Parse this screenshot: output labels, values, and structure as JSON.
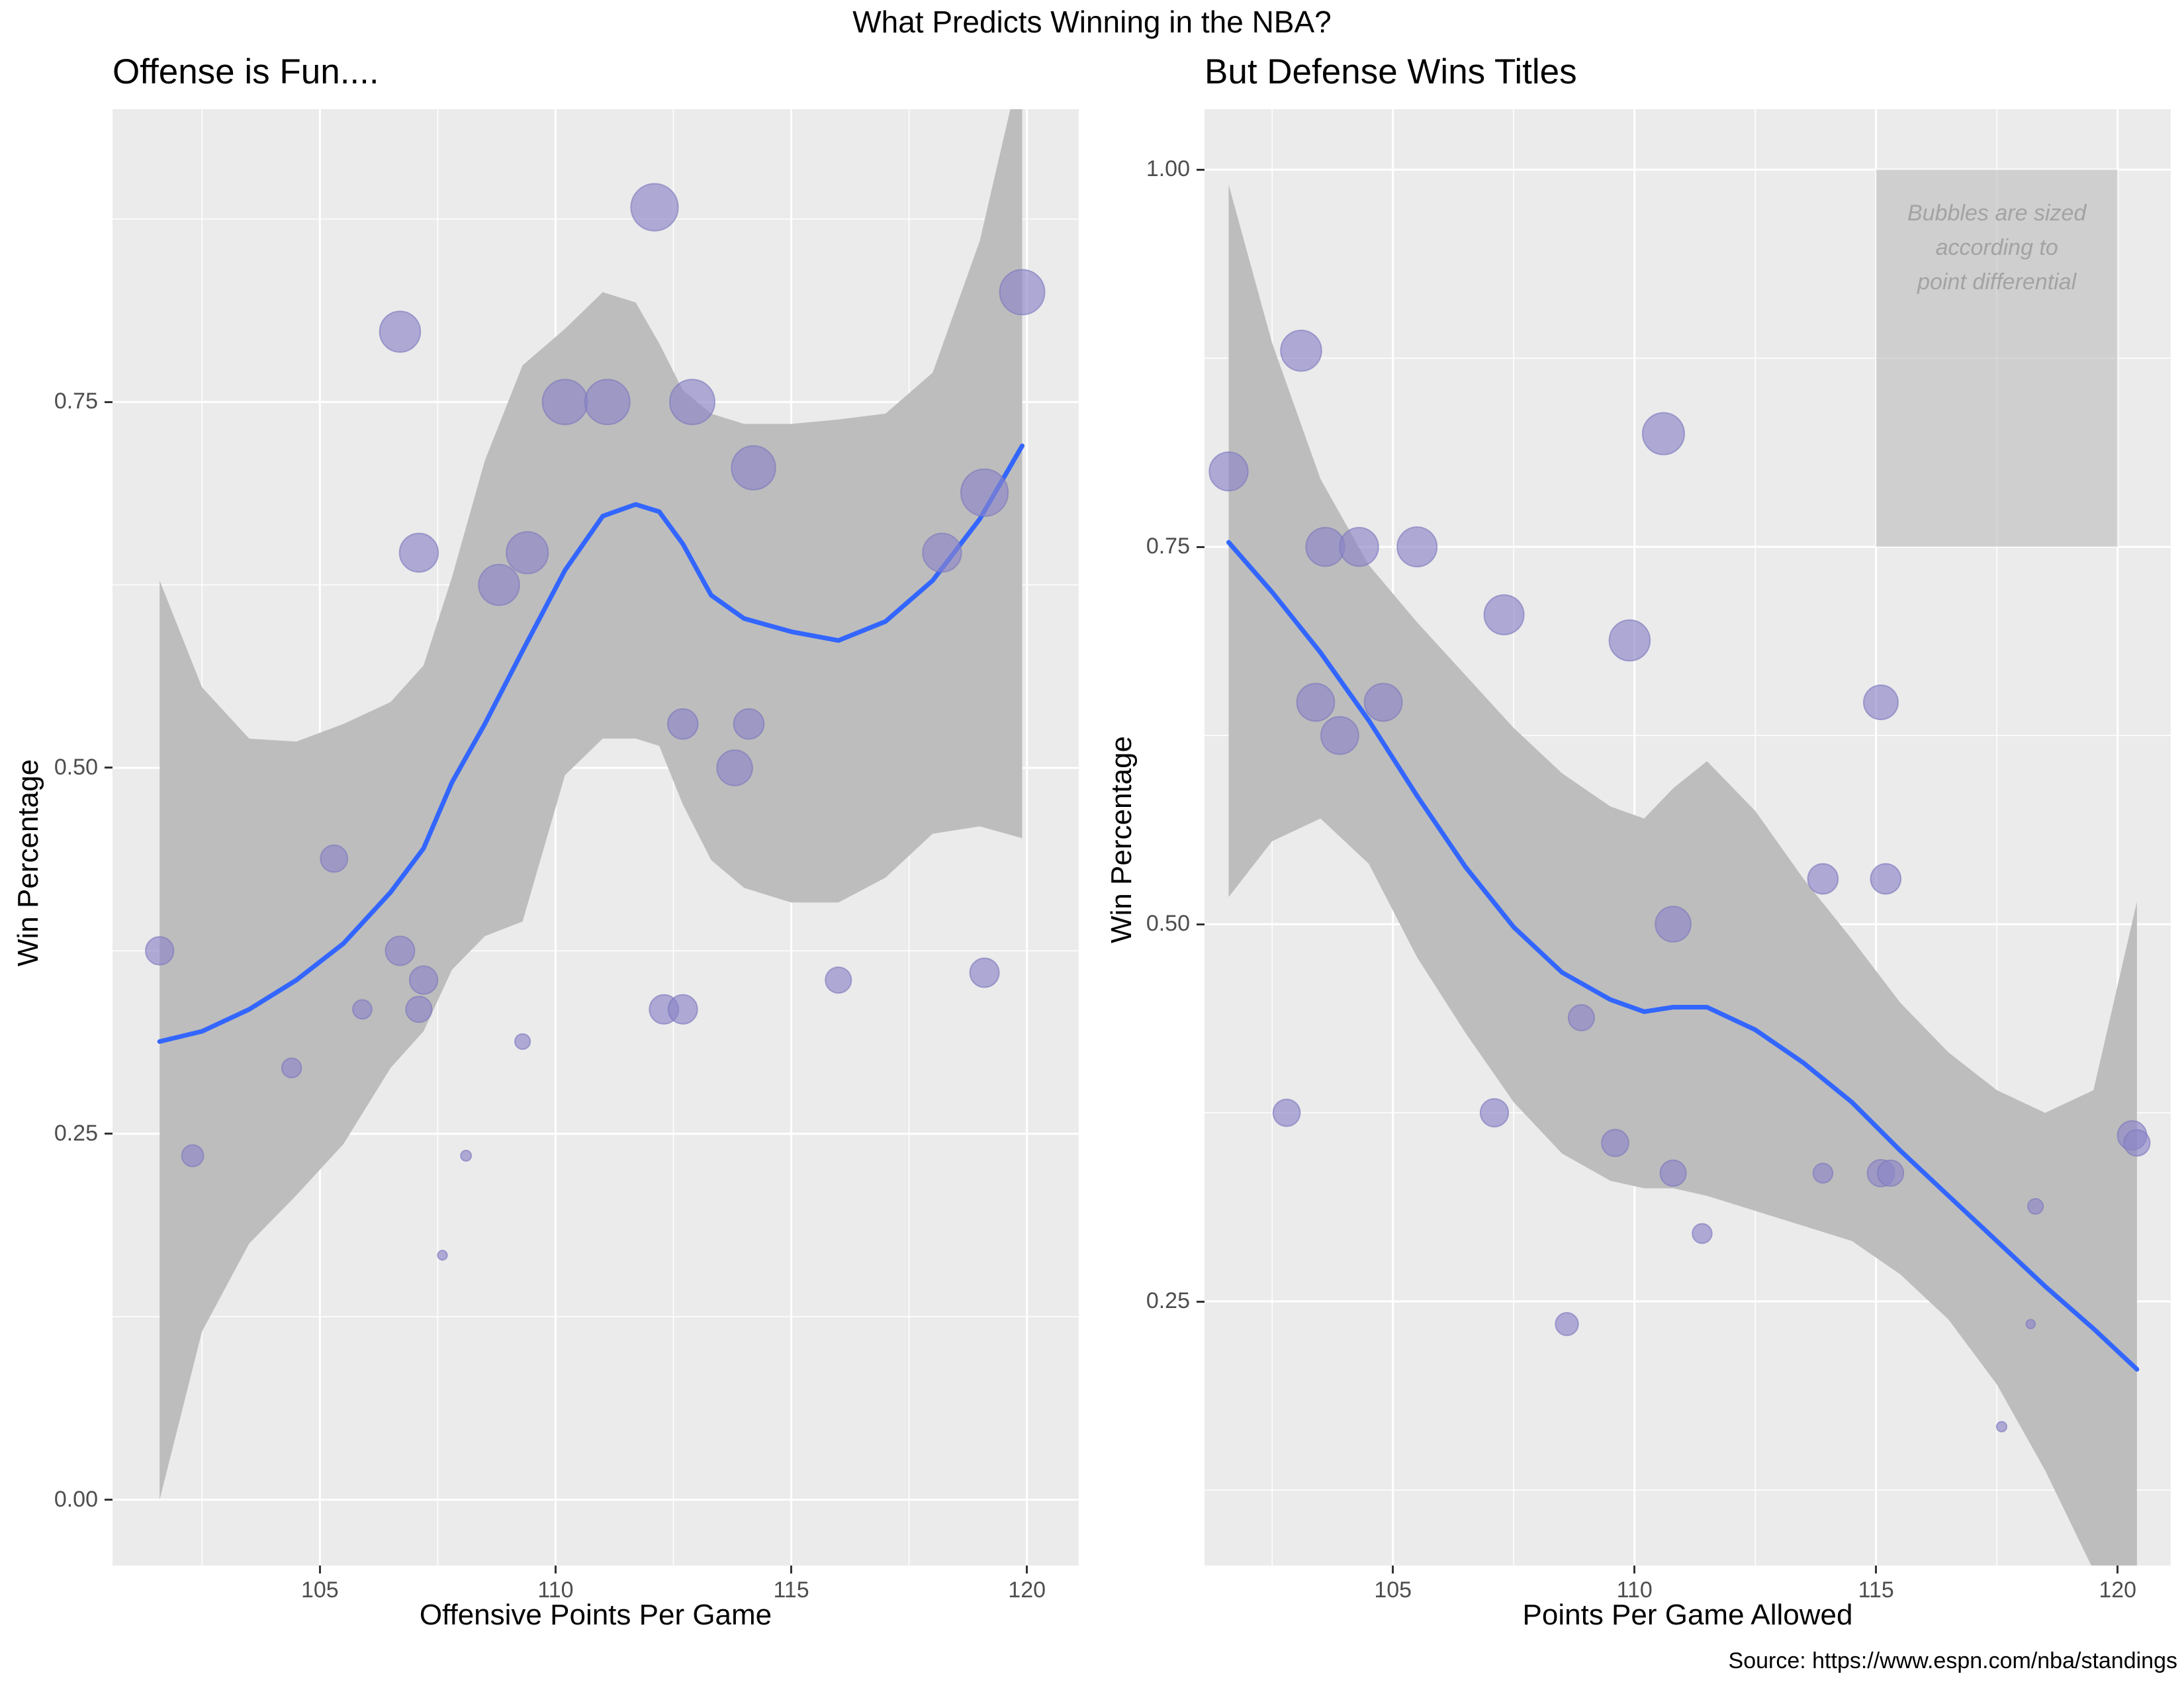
{
  "title": "What Predicts Winning in the NBA?",
  "source": "Source: https://www.espn.com/nba/standings",
  "colors": {
    "panel_bg": "#ebebeb",
    "grid": "#ffffff",
    "ribbon": "#bdbdbd",
    "smooth": "#3366ff",
    "bubble": "#8c86c8"
  },
  "chart_data": [
    {
      "type": "scatter",
      "title": "Offense is Fun....",
      "xlabel": "Offensive Points Per Game",
      "ylabel": "Win Percentage",
      "xlim": [
        100.6,
        121.1
      ],
      "ylim": [
        -0.045,
        0.95
      ],
      "xticks": [
        105,
        110,
        115,
        120
      ],
      "xtick_labels": [
        "105",
        "110",
        "115",
        "120"
      ],
      "yticks": [
        0.0,
        0.25,
        0.5,
        0.75
      ],
      "ytick_labels": [
        "0.00",
        "0.25",
        "0.50",
        "0.75"
      ],
      "points": [
        {
          "x": 101.6,
          "y": 0.375,
          "size": 0.38
        },
        {
          "x": 102.3,
          "y": 0.235,
          "size": 0.26
        },
        {
          "x": 104.4,
          "y": 0.295,
          "size": 0.22
        },
        {
          "x": 105.3,
          "y": 0.438,
          "size": 0.36
        },
        {
          "x": 105.9,
          "y": 0.335,
          "size": 0.21
        },
        {
          "x": 106.7,
          "y": 0.798,
          "size": 0.62
        },
        {
          "x": 106.7,
          "y": 0.375,
          "size": 0.4
        },
        {
          "x": 107.1,
          "y": 0.647,
          "size": 0.58
        },
        {
          "x": 107.1,
          "y": 0.335,
          "size": 0.34
        },
        {
          "x": 107.2,
          "y": 0.355,
          "size": 0.38
        },
        {
          "x": 107.6,
          "y": 0.167,
          "size": 0.03
        },
        {
          "x": 108.1,
          "y": 0.235,
          "size": 0.05
        },
        {
          "x": 108.8,
          "y": 0.625,
          "size": 0.62
        },
        {
          "x": 109.3,
          "y": 0.313,
          "size": 0.14
        },
        {
          "x": 109.4,
          "y": 0.647,
          "size": 0.64
        },
        {
          "x": 110.2,
          "y": 0.75,
          "size": 0.7
        },
        {
          "x": 111.1,
          "y": 0.75,
          "size": 0.7
        },
        {
          "x": 112.1,
          "y": 0.883,
          "size": 0.74
        },
        {
          "x": 112.3,
          "y": 0.335,
          "size": 0.4
        },
        {
          "x": 112.7,
          "y": 0.53,
          "size": 0.42
        },
        {
          "x": 112.7,
          "y": 0.335,
          "size": 0.4
        },
        {
          "x": 112.9,
          "y": 0.75,
          "size": 0.7
        },
        {
          "x": 113.8,
          "y": 0.5,
          "size": 0.52
        },
        {
          "x": 114.1,
          "y": 0.53,
          "size": 0.42
        },
        {
          "x": 114.2,
          "y": 0.705,
          "size": 0.68
        },
        {
          "x": 116.0,
          "y": 0.355,
          "size": 0.34
        },
        {
          "x": 118.2,
          "y": 0.647,
          "size": 0.58
        },
        {
          "x": 119.1,
          "y": 0.688,
          "size": 0.74
        },
        {
          "x": 119.1,
          "y": 0.36,
          "size": 0.4
        },
        {
          "x": 119.9,
          "y": 0.825,
          "size": 0.7
        }
      ],
      "smooth": {
        "x": [
          101.6,
          102.5,
          103.5,
          104.5,
          105.5,
          106.5,
          107.2,
          107.8,
          108.5,
          109.3,
          110.2,
          111.0,
          111.7,
          112.2,
          112.7,
          113.3,
          114.0,
          115.0,
          116.0,
          117.0,
          118.0,
          119.0,
          119.9
        ],
        "y": [
          0.313,
          0.32,
          0.335,
          0.355,
          0.38,
          0.415,
          0.445,
          0.49,
          0.53,
          0.58,
          0.635,
          0.672,
          0.68,
          0.675,
          0.653,
          0.618,
          0.602,
          0.593,
          0.587,
          0.6,
          0.628,
          0.67,
          0.72
        ],
        "lower": [
          0.0,
          0.115,
          0.175,
          0.208,
          0.243,
          0.295,
          0.32,
          0.362,
          0.385,
          0.395,
          0.495,
          0.52,
          0.52,
          0.515,
          0.475,
          0.437,
          0.418,
          0.408,
          0.408,
          0.425,
          0.455,
          0.46,
          0.452
        ],
        "upper": [
          0.628,
          0.555,
          0.52,
          0.518,
          0.53,
          0.545,
          0.57,
          0.63,
          0.71,
          0.775,
          0.8,
          0.825,
          0.818,
          0.79,
          0.758,
          0.742,
          0.735,
          0.735,
          0.738,
          0.742,
          0.77,
          0.86,
          0.985
        ]
      }
    },
    {
      "type": "scatter",
      "title": "But Defense Wins Titles",
      "xlabel": "Points Per Game Allowed",
      "ylabel": "Win Percentage",
      "xlim": [
        101.1,
        121.1
      ],
      "ylim": [
        0.075,
        1.04
      ],
      "xticks": [
        105,
        110,
        115,
        120
      ],
      "xtick_labels": [
        "105",
        "110",
        "115",
        "120"
      ],
      "yticks": [
        0.25,
        0.5,
        0.75,
        1.0
      ],
      "ytick_labels": [
        "0.25",
        "0.50",
        "0.75",
        "1.00"
      ],
      "annotation": "Bubbles are sized according to point differential",
      "annotation_lines": [
        "Bubbles are sized",
        "according to",
        "point differential"
      ],
      "annotation_rect": {
        "x0": 115.0,
        "x1": 120.0,
        "y0": 0.75,
        "y1": 1.0
      },
      "points": [
        {
          "x": 101.6,
          "y": 0.8,
          "size": 0.58
        },
        {
          "x": 102.8,
          "y": 0.375,
          "size": 0.36
        },
        {
          "x": 103.1,
          "y": 0.88,
          "size": 0.62
        },
        {
          "x": 103.4,
          "y": 0.647,
          "size": 0.56
        },
        {
          "x": 103.6,
          "y": 0.75,
          "size": 0.58
        },
        {
          "x": 103.9,
          "y": 0.625,
          "size": 0.56
        },
        {
          "x": 104.3,
          "y": 0.75,
          "size": 0.58
        },
        {
          "x": 104.8,
          "y": 0.647,
          "size": 0.56
        },
        {
          "x": 105.5,
          "y": 0.75,
          "size": 0.6
        },
        {
          "x": 107.1,
          "y": 0.375,
          "size": 0.38
        },
        {
          "x": 107.3,
          "y": 0.705,
          "size": 0.6
        },
        {
          "x": 108.6,
          "y": 0.235,
          "size": 0.28
        },
        {
          "x": 108.9,
          "y": 0.438,
          "size": 0.34
        },
        {
          "x": 109.6,
          "y": 0.355,
          "size": 0.36
        },
        {
          "x": 109.9,
          "y": 0.688,
          "size": 0.62
        },
        {
          "x": 110.6,
          "y": 0.825,
          "size": 0.64
        },
        {
          "x": 110.8,
          "y": 0.5,
          "size": 0.52
        },
        {
          "x": 110.8,
          "y": 0.335,
          "size": 0.34
        },
        {
          "x": 111.4,
          "y": 0.295,
          "size": 0.22
        },
        {
          "x": 113.9,
          "y": 0.53,
          "size": 0.42
        },
        {
          "x": 113.9,
          "y": 0.335,
          "size": 0.22
        },
        {
          "x": 115.1,
          "y": 0.647,
          "size": 0.5
        },
        {
          "x": 115.1,
          "y": 0.335,
          "size": 0.36
        },
        {
          "x": 115.2,
          "y": 0.53,
          "size": 0.42
        },
        {
          "x": 115.3,
          "y": 0.335,
          "size": 0.34
        },
        {
          "x": 117.6,
          "y": 0.167,
          "size": 0.04
        },
        {
          "x": 118.2,
          "y": 0.235,
          "size": 0.02
        },
        {
          "x": 118.3,
          "y": 0.313,
          "size": 0.14
        },
        {
          "x": 120.3,
          "y": 0.36,
          "size": 0.4
        },
        {
          "x": 120.4,
          "y": 0.355,
          "size": 0.34
        }
      ],
      "smooth": {
        "x": [
          101.6,
          102.5,
          103.5,
          104.5,
          105.5,
          106.5,
          107.5,
          108.5,
          109.5,
          110.2,
          110.8,
          111.5,
          112.5,
          113.5,
          114.5,
          115.5,
          116.5,
          117.5,
          118.5,
          119.5,
          120.4
        ],
        "y": [
          0.753,
          0.72,
          0.68,
          0.635,
          0.585,
          0.538,
          0.498,
          0.468,
          0.45,
          0.442,
          0.445,
          0.445,
          0.43,
          0.408,
          0.382,
          0.35,
          0.32,
          0.29,
          0.26,
          0.232,
          0.205
        ],
        "lower": [
          0.518,
          0.555,
          0.57,
          0.54,
          0.478,
          0.428,
          0.382,
          0.348,
          0.33,
          0.325,
          0.325,
          0.32,
          0.31,
          0.3,
          0.29,
          0.268,
          0.238,
          0.195,
          0.138,
          0.072,
          0.012
        ],
        "upper": [
          0.99,
          0.885,
          0.795,
          0.738,
          0.7,
          0.665,
          0.63,
          0.6,
          0.578,
          0.57,
          0.59,
          0.608,
          0.575,
          0.53,
          0.49,
          0.448,
          0.415,
          0.39,
          0.375,
          0.39,
          0.515
        ]
      }
    }
  ]
}
